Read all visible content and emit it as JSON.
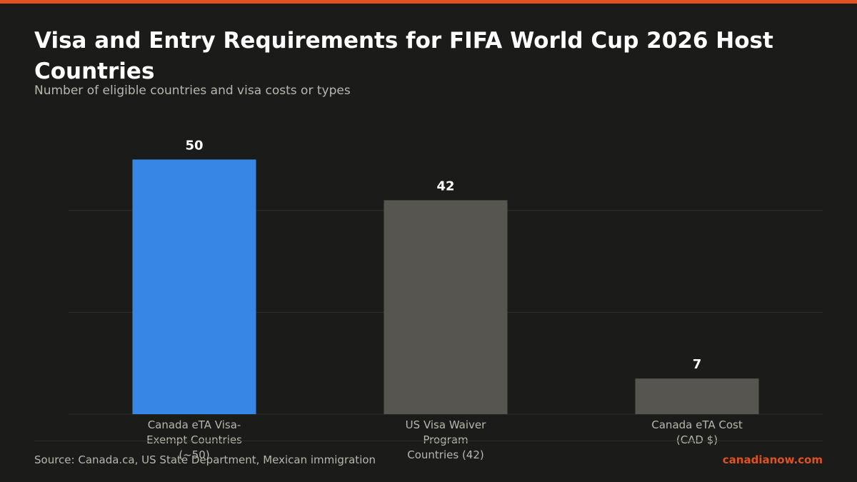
{
  "header": {
    "title": "Visa and Entry Requirements for FIFA World Cup 2026 Host Countries",
    "subtitle": "Number of eligible countries and visa costs or types"
  },
  "footer": {
    "source": "Source: Canada.ca, US State Department, Mexican immigration",
    "brand": "canadianow.com"
  },
  "colors": {
    "accent": "#e0521f",
    "highlight_bar": "#3785e5",
    "bar": "#56554f",
    "background": "#1b1b19"
  },
  "chart_data": {
    "type": "bar",
    "title": "Visa and Entry Requirements for FIFA World Cup 2026 Host Countries",
    "subtitle": "Number of eligible countries and visa costs or types",
    "categories": [
      "Canada eTA Visa-Exempt Countries (~50)",
      "US Visa Waiver Program Countries (42)",
      "Canada eTA Cost (CAD $)"
    ],
    "category_lines": [
      [
        "Canada eTA Visa-",
        "Exempt Countries",
        "(~50)"
      ],
      [
        "US Visa Waiver",
        "Program",
        "Countries (42)"
      ],
      [
        "Canada eTA Cost",
        "(CAD $)"
      ]
    ],
    "values": [
      50,
      42,
      7
    ],
    "value_labels": [
      "50",
      "42",
      "7"
    ],
    "bar_colors": [
      "#3785e5",
      "#56554f",
      "#56554f"
    ],
    "xlabel": "",
    "ylabel": "",
    "ylim": [
      0,
      56.5
    ],
    "grid": true
  }
}
